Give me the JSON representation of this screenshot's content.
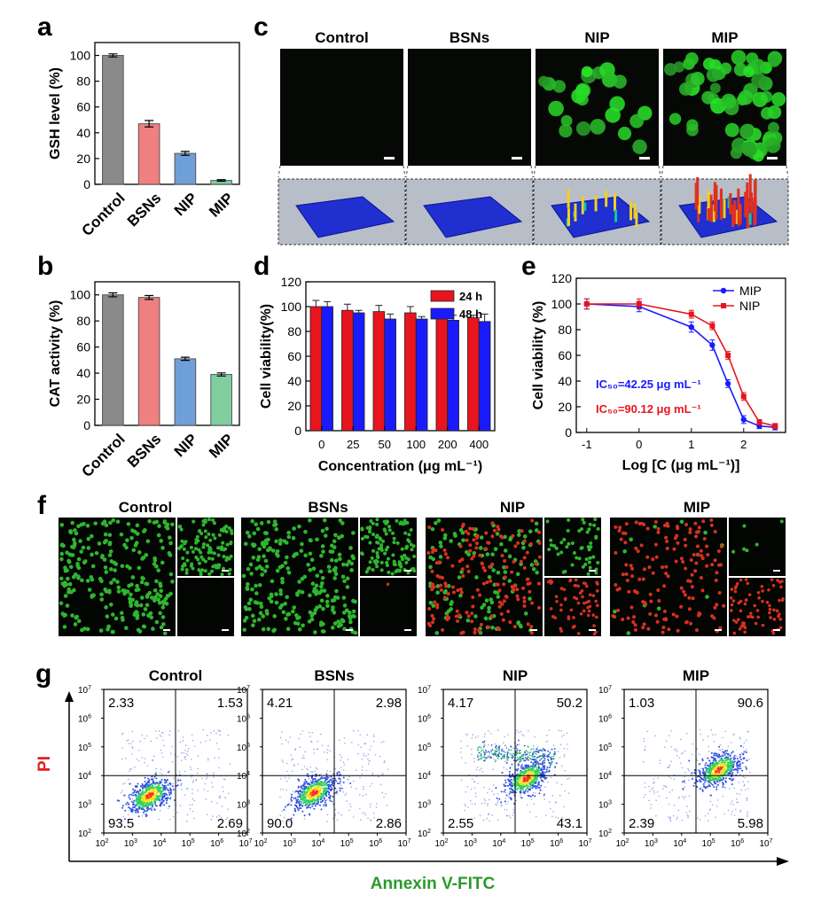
{
  "colors": {
    "gray": "#8a8a8a",
    "pink": "#f08080",
    "blue": "#6f9fd8",
    "green": "#7fcfa0",
    "red": "#e8141e",
    "darkblue": "#1a1aff",
    "fitc": "#2a9a2a",
    "pi": "#e02020"
  },
  "panel_labels": {
    "a": "a",
    "b": "b",
    "c": "c",
    "d": "d",
    "e": "e",
    "f": "f",
    "g": "g"
  },
  "panel_c": {
    "groups": [
      "Control",
      "BSNs",
      "NIP",
      "MIP"
    ]
  },
  "panel_f": {
    "groups": [
      "Control",
      "BSNs",
      "NIP",
      "MIP"
    ]
  },
  "chart_data": [
    {
      "id": "a",
      "type": "bar",
      "categories": [
        "Control",
        "BSNs",
        "NIP",
        "MIP"
      ],
      "values": [
        100,
        47,
        24,
        3
      ],
      "errors": [
        1.2,
        2.5,
        1.5,
        0.6
      ],
      "colors": [
        "#8a8a8a",
        "#f08080",
        "#6f9fd8",
        "#7fcfa0"
      ],
      "ylabel": "GSH level (%)",
      "ylim": [
        0,
        110
      ],
      "yticks": [
        0,
        20,
        40,
        60,
        80,
        100
      ]
    },
    {
      "id": "b",
      "type": "bar",
      "categories": [
        "Control",
        "BSNs",
        "NIP",
        "MIP"
      ],
      "values": [
        100,
        98,
        51,
        39
      ],
      "errors": [
        1.5,
        1.5,
        1.2,
        1.2
      ],
      "colors": [
        "#8a8a8a",
        "#f08080",
        "#6f9fd8",
        "#7fcfa0"
      ],
      "ylabel": "CAT activity (%)",
      "ylim": [
        0,
        110
      ],
      "yticks": [
        0,
        20,
        40,
        60,
        80,
        100
      ]
    },
    {
      "id": "d",
      "type": "bar",
      "categories": [
        "0",
        "25",
        "50",
        "100",
        "200",
        "400"
      ],
      "series": [
        {
          "name": "24 h",
          "color": "#e8141e",
          "values": [
            100,
            97,
            96,
            95,
            93,
            91
          ],
          "errors": [
            5,
            5,
            5,
            5,
            5,
            2
          ]
        },
        {
          "name": "48 h",
          "color": "#1a1aff",
          "values": [
            100,
            95,
            90,
            90,
            89,
            88
          ],
          "errors": [
            4,
            2,
            4,
            2,
            4,
            6
          ]
        }
      ],
      "xlabel": "Concentration (μg mL⁻¹)",
      "ylabel": "Cell viability(%)",
      "ylim": [
        0,
        120
      ],
      "yticks": [
        0,
        20,
        40,
        60,
        80,
        100,
        120
      ],
      "legend": "top-right"
    },
    {
      "id": "e",
      "type": "line",
      "x": [
        -1,
        0,
        1,
        1.4,
        1.7,
        2,
        2.3,
        2.6
      ],
      "series": [
        {
          "name": "MIP",
          "color": "#1a1aff",
          "values": [
            100,
            98,
            82,
            68,
            38,
            10,
            5,
            4
          ],
          "errors": [
            4,
            4,
            4,
            4,
            3,
            3,
            2,
            2
          ]
        },
        {
          "name": "NIP",
          "color": "#e8141e",
          "values": [
            100,
            100,
            92,
            83,
            60,
            28,
            8,
            5
          ],
          "errors": [
            4,
            4,
            3,
            3,
            3,
            3,
            2,
            2
          ]
        }
      ],
      "xlabel": "Log [C (μg mL⁻¹)]",
      "ylabel": "Cell viability (%)",
      "xlim": [
        -1.2,
        2.8
      ],
      "xticks": [
        -1,
        0,
        1,
        2
      ],
      "ylim": [
        0,
        120
      ],
      "yticks": [
        0,
        20,
        40,
        60,
        80,
        100,
        120
      ],
      "legend": "top-right",
      "annotations": [
        "IC₅₀=42.25 μg mL⁻¹",
        "IC₅₀=90.12 μg mL⁻¹"
      ]
    },
    {
      "id": "g",
      "type": "scatter",
      "xlabel": "Annexin V-FITC",
      "ylabel": "PI",
      "xtick_exponents": [
        "2",
        "3",
        "4",
        "5",
        "6",
        "7"
      ],
      "ytick_exponents": [
        "2",
        "3",
        "4",
        "5",
        "6",
        "7"
      ],
      "plots": [
        {
          "title": "Control",
          "quadrants": [
            "2.33",
            "1.53",
            "93.5",
            "2.69"
          ],
          "cx": 3.6,
          "cy": 3.3
        },
        {
          "title": "BSNs",
          "quadrants": [
            "4.21",
            "2.98",
            "90.0",
            "2.86"
          ],
          "cx": 3.8,
          "cy": 3.4
        },
        {
          "title": "NIP",
          "quadrants": [
            "4.17",
            "50.2",
            "2.55",
            "43.1"
          ],
          "cx": 4.9,
          "cy": 3.9
        },
        {
          "title": "MIP",
          "quadrants": [
            "1.03",
            "90.6",
            "2.39",
            "5.98"
          ],
          "cx": 5.3,
          "cy": 4.2
        }
      ]
    }
  ]
}
